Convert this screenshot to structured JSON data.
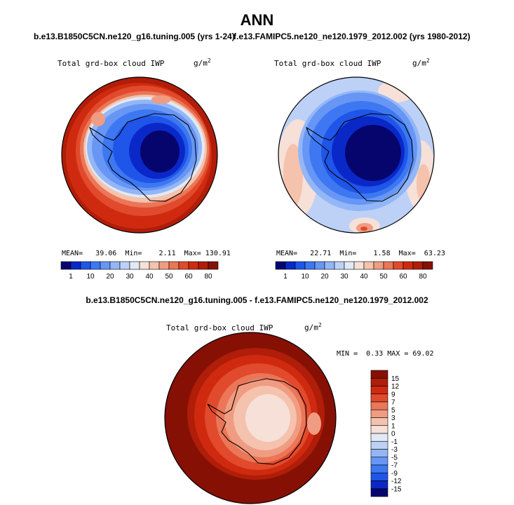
{
  "title": "ANN",
  "panels": {
    "left": {
      "case": "b.e13.B1850C5CN.ne120_g16.tuning.005 (yrs 1-24)",
      "variable": "Total grd-box cloud IWP",
      "units_base": "g/m",
      "units_exp": "2",
      "mean_label": "MEAN=",
      "mean": "39.06",
      "min_label": "Min=",
      "min": "2.11",
      "max_label": "Max=",
      "max": "130.91"
    },
    "right": {
      "case": "f.e13.FAMIPC5.ne120_ne120.1979_2012.002 (yrs 1980-2012)",
      "variable": "Total grd-box cloud IWP",
      "units_base": "g/m",
      "units_exp": "2",
      "mean_label": "MEAN=",
      "mean": "22.71",
      "min_label": "Min=",
      "min": "1.58",
      "max_label": "Max=",
      "max": "63.23"
    },
    "diff": {
      "title": "b.e13.B1850C5CN.ne120_g16.tuning.005 - f.e13.FAMIPC5.ne120_ne120.1979_2012.002",
      "variable": "Total grd-box cloud IWP",
      "units_base": "g/m",
      "units_exp": "2",
      "min_label": "MIN =",
      "min": "0.33",
      "max_label": "MAX =",
      "max": "69.02"
    }
  },
  "chart_data": [
    {
      "type": "heatmap",
      "name": "model-panel",
      "title": "b.e13.B1850C5CN.ne120_g16.tuning.005 (yrs 1-24)",
      "field": "Total grd-box cloud IWP",
      "units": "g/m^2",
      "projection": "south polar stereographic",
      "stats": {
        "mean": 39.06,
        "min": 2.11,
        "max": 130.91
      },
      "colorbar": {
        "labels": [
          1,
          10,
          20,
          30,
          40,
          50,
          60,
          80
        ],
        "colors": [
          "#06056e",
          "#0a28c8",
          "#1f55e8",
          "#3d78f2",
          "#6796f5",
          "#93b6f7",
          "#bdd1f7",
          "#e1e9f5",
          "#f6e0d7",
          "#f5c2ad",
          "#f09c82",
          "#eb7658",
          "#e14a2c",
          "#cf2a10",
          "#b01d08",
          "#861004"
        ]
      }
    },
    {
      "type": "heatmap",
      "name": "obs-panel",
      "title": "f.e13.FAMIPC5.ne120_ne120.1979_2012.002 (yrs 1980-2012)",
      "field": "Total grd-box cloud IWP",
      "units": "g/m^2",
      "projection": "south polar stereographic",
      "stats": {
        "mean": 22.71,
        "min": 1.58,
        "max": 63.23
      },
      "colorbar": {
        "labels": [
          1,
          10,
          20,
          30,
          40,
          50,
          60,
          80
        ],
        "colors": [
          "#06056e",
          "#0a28c8",
          "#1f55e8",
          "#3d78f2",
          "#6796f5",
          "#93b6f7",
          "#bdd1f7",
          "#e1e9f5",
          "#f6e0d7",
          "#f5c2ad",
          "#f09c82",
          "#eb7658",
          "#e14a2c",
          "#cf2a10",
          "#b01d08",
          "#861004"
        ]
      }
    },
    {
      "type": "heatmap",
      "name": "difference-panel",
      "title": "b.e13.B1850C5CN.ne120_g16.tuning.005 - f.e13.FAMIPC5.ne120_ne120.1979_2012.002",
      "field": "Total grd-box cloud IWP",
      "units": "g/m^2",
      "projection": "south polar stereographic",
      "stats": {
        "min": 0.33,
        "max": 69.02
      },
      "colorbar": {
        "labels": [
          15,
          12,
          9,
          7,
          5,
          3,
          1,
          0,
          -1,
          -3,
          -5,
          -7,
          -9,
          -12,
          -15
        ],
        "colors": [
          "#861004",
          "#b01d08",
          "#cf2a10",
          "#e14a2c",
          "#eb7658",
          "#f09c82",
          "#f5c2ad",
          "#f6e0d7",
          "#e1e9f5",
          "#bdd1f7",
          "#93b6f7",
          "#6796f5",
          "#3d78f2",
          "#1f55e8",
          "#0a28c8",
          "#06056e"
        ]
      }
    }
  ]
}
